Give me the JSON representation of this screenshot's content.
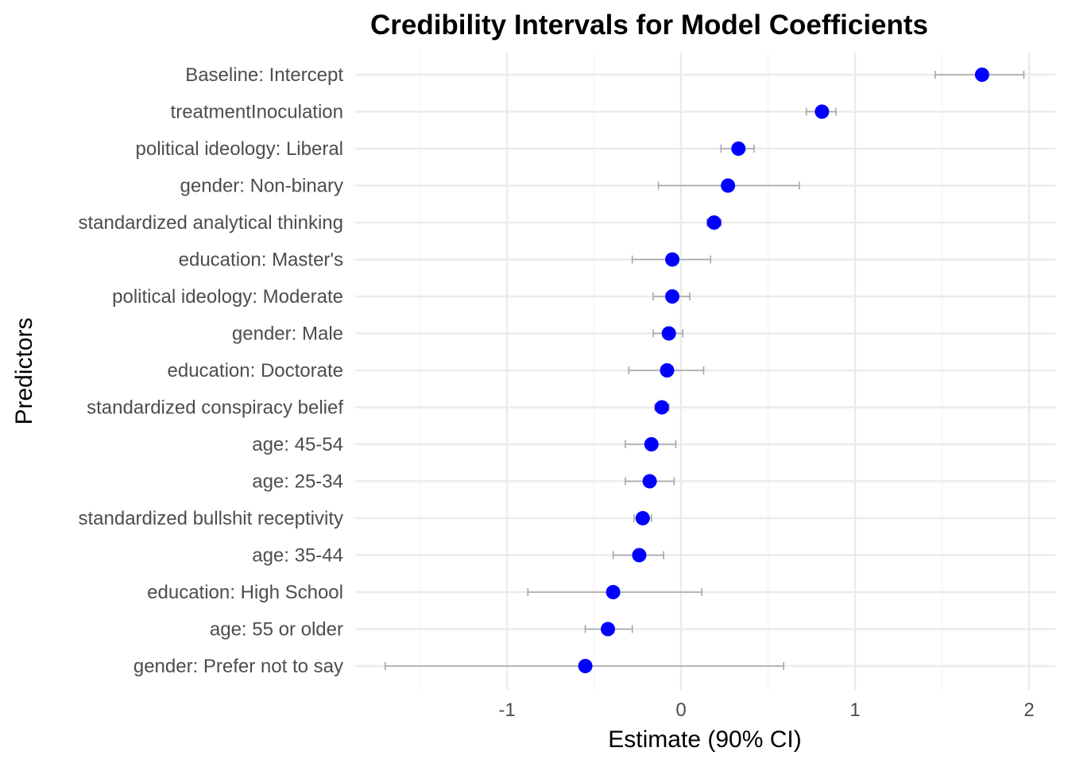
{
  "chart_data": {
    "type": "scatter",
    "title": "Credibility Intervals for Model Coefficients",
    "xlabel": "Estimate (90% CI)",
    "ylabel": "Predictors",
    "xlim": [
      -1.9,
      2.15
    ],
    "x_ticks": [
      -1,
      0,
      1,
      2
    ],
    "x_tick_labels": [
      "-1",
      "0",
      "1",
      "2"
    ],
    "grid": true,
    "legend": "none",
    "point_color": "#0000ff",
    "errorbar_color": "#a6a6a6",
    "categories": [
      "Baseline: Intercept",
      "treatmentInoculation",
      "political ideology: Liberal",
      "gender: Non-binary",
      "standardized analytical thinking",
      "education: Master's",
      "political ideology: Moderate",
      "gender: Male",
      "education: Doctorate",
      "standardized conspiracy belief",
      "age: 45-54",
      "age: 25-34",
      "standardized bullshit receptivity",
      "age: 35-44",
      "education: High School",
      "age: 55 or older",
      "gender: Prefer not to say"
    ],
    "series": [
      {
        "estimate": [
          1.73,
          0.81,
          0.33,
          0.27,
          0.19,
          -0.05,
          -0.05,
          -0.07,
          -0.08,
          -0.11,
          -0.17,
          -0.18,
          -0.22,
          -0.24,
          -0.39,
          -0.42,
          -0.55
        ],
        "lower": [
          1.46,
          0.72,
          0.23,
          -0.13,
          0.15,
          -0.28,
          -0.16,
          -0.16,
          -0.3,
          -0.15,
          -0.32,
          -0.32,
          -0.27,
          -0.39,
          -0.88,
          -0.55,
          -1.7
        ],
        "upper": [
          1.97,
          0.89,
          0.42,
          0.68,
          0.23,
          0.17,
          0.05,
          0.01,
          0.13,
          -0.07,
          -0.03,
          -0.04,
          -0.17,
          -0.1,
          0.12,
          -0.28,
          0.59
        ]
      }
    ]
  }
}
